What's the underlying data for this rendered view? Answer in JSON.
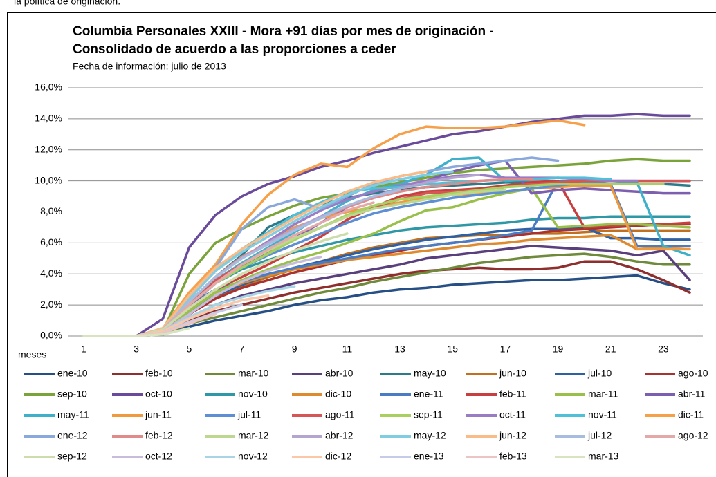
{
  "page_text": "la política de originación.",
  "chart_data": {
    "type": "line",
    "title": [
      "Columbia Personales XXIII - Mora +91 días por mes de originación -",
      "Consolidado de acuerdo a las proporciones a ceder"
    ],
    "subtitle": "Fecha de información: julio de 2013",
    "x_label": "meses",
    "categories": [
      1,
      null,
      3,
      null,
      5,
      null,
      7,
      null,
      9,
      null,
      11,
      null,
      13,
      null,
      15,
      null,
      17,
      null,
      19,
      null,
      21,
      null,
      23,
      null
    ],
    "ylim": [
      0,
      16
    ],
    "yticks": [
      {
        "value": 0,
        "label": "0,0%"
      },
      {
        "value": 2,
        "label": "2,0%"
      },
      {
        "value": 4,
        "label": "4,0%"
      },
      {
        "value": 6,
        "label": "6,0%"
      },
      {
        "value": 8,
        "label": "8,0%"
      },
      {
        "value": 10,
        "label": "10,0%"
      },
      {
        "value": 12,
        "label": "12,0%"
      },
      {
        "value": 14,
        "label": "14,0%"
      },
      {
        "value": 16,
        "label": "16,0%"
      }
    ],
    "grid": true,
    "legend": "bottom",
    "series": [
      {
        "name": "ene-10",
        "color": "#264f86",
        "values": [
          0,
          0,
          0,
          0.1,
          0.6,
          1.0,
          1.3,
          1.6,
          2.0,
          2.3,
          2.5,
          2.8,
          3.0,
          3.1,
          3.3,
          3.4,
          3.5,
          3.6,
          3.6,
          3.7,
          3.8,
          3.9,
          3.4,
          3.0
        ]
      },
      {
        "name": "feb-10",
        "color": "#8e2f2d",
        "values": [
          0,
          0,
          0,
          0.2,
          1.0,
          1.6,
          2.0,
          2.4,
          2.8,
          3.1,
          3.4,
          3.7,
          4.0,
          4.2,
          4.3,
          4.4,
          4.3,
          4.3,
          4.4,
          4.8,
          4.8,
          4.3,
          3.6,
          2.8
        ]
      },
      {
        "name": "mar-10",
        "color": "#6e8a3a",
        "values": [
          0,
          0,
          0,
          0.1,
          0.8,
          1.2,
          1.6,
          2.0,
          2.4,
          2.8,
          3.1,
          3.5,
          3.8,
          4.1,
          4.4,
          4.7,
          4.9,
          5.1,
          5.2,
          5.3,
          5.1,
          4.8,
          4.6,
          4.6
        ]
      },
      {
        "name": "abr-10",
        "color": "#5a3f7d",
        "values": [
          0,
          0,
          0,
          0.2,
          1.2,
          2.0,
          2.6,
          3.0,
          3.4,
          3.7,
          4.0,
          4.3,
          4.6,
          5.0,
          5.2,
          5.4,
          5.6,
          5.8,
          5.7,
          5.6,
          5.5,
          5.2,
          5.5,
          3.6
        ]
      },
      {
        "name": "may-10",
        "color": "#2c7b8a",
        "values": [
          0,
          0,
          0,
          0.3,
          1.8,
          3.8,
          5.2,
          7.0,
          7.8,
          8.5,
          8.9,
          9.2,
          9.4,
          9.6,
          9.7,
          9.8,
          9.9,
          9.9,
          9.9,
          9.9,
          9.8,
          9.8,
          9.8,
          9.7
        ]
      },
      {
        "name": "jun-10",
        "color": "#c0701f",
        "values": [
          0,
          0,
          0,
          0.2,
          1.4,
          2.5,
          3.2,
          3.8,
          4.3,
          4.8,
          5.3,
          5.7,
          6.0,
          6.3,
          6.4,
          6.5,
          6.5,
          6.6,
          6.6,
          6.7,
          6.8,
          6.8,
          6.8,
          6.8
        ]
      },
      {
        "name": "jul-10",
        "color": "#2f60a2",
        "values": [
          0,
          0,
          0,
          0.2,
          1.6,
          2.6,
          3.3,
          3.9,
          4.4,
          4.8,
          5.2,
          5.6,
          5.9,
          6.2,
          6.4,
          6.6,
          6.8,
          6.9,
          6.9,
          7.0,
          6.3,
          6.3,
          6.2,
          6.2
        ]
      },
      {
        "name": "ago-10",
        "color": "#a83230",
        "values": [
          0,
          0,
          0,
          0.2,
          1.4,
          2.4,
          3.1,
          3.6,
          4.1,
          4.5,
          4.9,
          5.2,
          5.5,
          5.8,
          6.0,
          6.2,
          6.4,
          6.6,
          6.8,
          6.9,
          7.0,
          7.1,
          7.2,
          7.2
        ]
      },
      {
        "name": "sep-10",
        "color": "#7aa33a",
        "values": [
          0,
          0,
          0,
          0.3,
          4.0,
          6.0,
          6.9,
          7.7,
          8.4,
          8.9,
          9.2,
          9.6,
          9.9,
          10.2,
          10.5,
          10.7,
          10.8,
          10.9,
          11.0,
          11.1,
          11.3,
          11.4,
          11.3,
          11.3
        ]
      },
      {
        "name": "oct-10",
        "color": "#6a4a9a",
        "values": [
          0,
          0,
          0,
          1.1,
          5.7,
          7.8,
          9.0,
          9.8,
          10.3,
          10.9,
          11.3,
          11.8,
          12.2,
          12.6,
          13.0,
          13.2,
          13.5,
          13.8,
          14.0,
          14.2,
          14.2,
          14.3,
          14.2,
          14.2
        ]
      },
      {
        "name": "nov-10",
        "color": "#2f98a6",
        "values": [
          0,
          0,
          0,
          0.3,
          2.0,
          3.4,
          4.3,
          4.9,
          5.4,
          5.8,
          6.2,
          6.5,
          6.8,
          7.0,
          7.1,
          7.2,
          7.3,
          7.5,
          7.6,
          7.6,
          7.7,
          7.7,
          7.7,
          7.7
        ]
      },
      {
        "name": "dic-10",
        "color": "#de8a2e",
        "values": [
          0,
          0,
          0,
          0.3,
          1.8,
          2.8,
          3.4,
          3.9,
          4.3,
          4.6,
          4.9,
          5.1,
          5.3,
          5.5,
          5.7,
          5.9,
          6.0,
          6.2,
          6.3,
          6.4,
          6.5,
          5.6,
          5.7,
          5.8
        ]
      },
      {
        "name": "ene-11",
        "color": "#4a7cc4",
        "values": [
          0,
          0,
          0,
          0.3,
          2.0,
          3.0,
          3.5,
          4.0,
          4.4,
          4.7,
          5.0,
          5.3,
          5.6,
          5.8,
          6.0,
          6.2,
          6.5,
          6.8,
          10.0,
          9.9,
          9.8,
          5.8,
          5.8,
          5.8
        ]
      },
      {
        "name": "feb-11",
        "color": "#c83f3f",
        "values": [
          0,
          0,
          0,
          0.3,
          1.8,
          3.0,
          3.8,
          4.6,
          5.5,
          6.4,
          7.5,
          8.3,
          9.0,
          9.3,
          9.4,
          9.5,
          9.7,
          9.9,
          10.0,
          7.0,
          7.1,
          7.2,
          7.2,
          7.3
        ]
      },
      {
        "name": "mar-11",
        "color": "#98c04a",
        "values": [
          0,
          0,
          0,
          0.3,
          1.6,
          2.8,
          3.6,
          4.3,
          4.9,
          5.4,
          6.0,
          6.6,
          7.4,
          8.1,
          8.3,
          8.8,
          9.2,
          9.5,
          7.0,
          7.1,
          7.2,
          7.2,
          7.1,
          7.0
        ]
      },
      {
        "name": "abr-11",
        "color": "#7d5faf",
        "values": [
          0,
          0,
          0,
          0.3,
          1.9,
          3.4,
          4.5,
          5.4,
          6.3,
          7.3,
          8.3,
          9.0,
          9.5,
          10.0,
          10.6,
          11.0,
          11.3,
          9.2,
          9.4,
          9.5,
          9.4,
          9.3,
          9.2,
          9.2
        ]
      },
      {
        "name": "may-11",
        "color": "#3fb0c9",
        "values": [
          0,
          0,
          0,
          0.4,
          2.0,
          3.6,
          4.7,
          5.7,
          6.7,
          7.7,
          8.7,
          9.4,
          9.8,
          10.4,
          11.4,
          11.5,
          10.0,
          10.1,
          10.2,
          10.1,
          10.0,
          9.9,
          5.8,
          5.2
        ]
      },
      {
        "name": "jun-11",
        "color": "#f09a40",
        "values": [
          0,
          0,
          0,
          0.3,
          2.0,
          3.8,
          5.0,
          6.0,
          7.0,
          7.6,
          8.0,
          8.3,
          8.6,
          8.9,
          9.1,
          9.2,
          9.3,
          9.5,
          9.6,
          9.7,
          9.7,
          5.6,
          5.6,
          5.6
        ]
      },
      {
        "name": "jul-11",
        "color": "#5e8ed4",
        "values": [
          0,
          0,
          0,
          0.4,
          2.1,
          3.5,
          4.4,
          5.2,
          5.9,
          6.6,
          7.3,
          7.9,
          8.3,
          8.6,
          8.9,
          9.1,
          9.3,
          9.5,
          9.7,
          9.9,
          10.0,
          10.0,
          10.0,
          10.0
        ]
      },
      {
        "name": "ago-11",
        "color": "#d65656",
        "values": [
          0,
          0,
          0,
          0.4,
          2.2,
          3.6,
          4.6,
          5.5,
          6.3,
          7.0,
          7.7,
          8.3,
          8.8,
          9.2,
          9.3,
          9.4,
          9.6,
          9.8,
          9.9,
          10.0,
          10.0,
          10.0,
          10.0,
          10.0
        ]
      },
      {
        "name": "sep-11",
        "color": "#a8d060",
        "values": [
          0,
          0,
          0,
          0.3,
          2.0,
          3.4,
          4.4,
          5.3,
          6.2,
          7.0,
          7.8,
          8.4,
          8.8,
          9.0,
          9.2,
          9.4,
          9.6,
          9.7,
          9.8,
          9.8,
          9.8,
          9.8,
          9.8,
          null
        ]
      },
      {
        "name": "oct-11",
        "color": "#9a7cc4",
        "values": [
          0,
          0,
          0,
          0.4,
          2.2,
          3.8,
          5.0,
          6.1,
          7.2,
          8.1,
          8.8,
          9.3,
          9.7,
          10.0,
          10.3,
          10.4,
          10.2,
          10.2,
          10.2,
          10.1,
          10.0,
          10.0,
          null,
          null
        ]
      },
      {
        "name": "nov-11",
        "color": "#50c0d8",
        "values": [
          0,
          0,
          0,
          0.4,
          2.4,
          4.2,
          5.6,
          6.7,
          7.8,
          8.6,
          9.3,
          9.5,
          9.6,
          9.8,
          9.9,
          10.0,
          10.1,
          10.1,
          10.2,
          10.2,
          10.1,
          null,
          null,
          null
        ]
      },
      {
        "name": "dic-11",
        "color": "#f7a04a",
        "values": [
          0,
          0,
          0,
          0.5,
          2.8,
          4.6,
          7.2,
          9.1,
          10.4,
          11.1,
          10.9,
          12.1,
          13.0,
          13.5,
          13.4,
          13.4,
          13.5,
          13.7,
          13.9,
          13.6,
          null,
          null,
          null,
          null
        ]
      },
      {
        "name": "ene-12",
        "color": "#8aa8dc",
        "values": [
          0,
          0,
          0,
          0.4,
          2.4,
          4.4,
          6.9,
          8.3,
          8.8,
          8.2,
          9.0,
          9.8,
          10.3,
          10.6,
          10.9,
          11.1,
          11.3,
          11.5,
          11.3,
          null,
          null,
          null,
          null,
          null
        ]
      },
      {
        "name": "feb-12",
        "color": "#e08a8a",
        "values": [
          0,
          0,
          0,
          0.4,
          2.2,
          3.8,
          5.1,
          6.0,
          6.9,
          7.6,
          8.3,
          8.9,
          9.3,
          9.6,
          9.8,
          10.0,
          10.1,
          10.1,
          null,
          null,
          null,
          null,
          null,
          null
        ]
      },
      {
        "name": "mar-12",
        "color": "#bcd890",
        "values": [
          0,
          0,
          0,
          0.4,
          2.0,
          3.4,
          4.6,
          5.5,
          6.3,
          7.0,
          7.7,
          8.2,
          8.5,
          8.8,
          9.1,
          9.3,
          9.4,
          null,
          null,
          null,
          null,
          null,
          null,
          null
        ]
      },
      {
        "name": "abr-12",
        "color": "#b4a4d0",
        "values": [
          0,
          0,
          0,
          0.4,
          2.2,
          3.8,
          5.0,
          6.0,
          6.9,
          7.7,
          8.4,
          9.0,
          9.5,
          9.9,
          10.2,
          10.4,
          null,
          null,
          null,
          null,
          null,
          null,
          null,
          null
        ]
      },
      {
        "name": "may-12",
        "color": "#80cce0",
        "values": [
          0,
          0,
          0,
          0.4,
          2.4,
          4.2,
          5.4,
          6.4,
          7.4,
          8.3,
          9.1,
          9.7,
          10.1,
          10.4,
          10.6,
          null,
          null,
          null,
          null,
          null,
          null,
          null,
          null,
          null
        ]
      },
      {
        "name": "jun-12",
        "color": "#f9bc88",
        "values": [
          0,
          0,
          0,
          0.5,
          2.6,
          4.4,
          5.6,
          6.6,
          7.6,
          8.5,
          9.3,
          9.9,
          10.3,
          10.6,
          null,
          null,
          null,
          null,
          null,
          null,
          null,
          null,
          null,
          null
        ]
      },
      {
        "name": "jul-12",
        "color": "#a8bce0",
        "values": [
          0,
          0,
          0,
          0.4,
          2.2,
          3.8,
          5.0,
          5.9,
          6.8,
          7.6,
          8.4,
          9.0,
          9.4,
          null,
          null,
          null,
          null,
          null,
          null,
          null,
          null,
          null,
          null,
          null
        ]
      },
      {
        "name": "ago-12",
        "color": "#e4a8a8",
        "values": [
          0,
          0,
          0,
          0.4,
          2.0,
          3.4,
          4.6,
          5.6,
          6.5,
          7.3,
          8.1,
          8.6,
          null,
          null,
          null,
          null,
          null,
          null,
          null,
          null,
          null,
          null,
          null,
          null
        ]
      },
      {
        "name": "sep-12",
        "color": "#ccdcaa",
        "values": [
          0,
          0,
          0,
          0.4,
          1.8,
          3.0,
          4.0,
          4.8,
          5.5,
          6.1,
          6.6,
          null,
          null,
          null,
          null,
          null,
          null,
          null,
          null,
          null,
          null,
          null,
          null,
          null
        ]
      },
      {
        "name": "oct-12",
        "color": "#c8bcdc",
        "values": [
          0,
          0,
          0,
          0.3,
          1.4,
          2.6,
          3.5,
          4.2,
          4.7,
          5.1,
          null,
          null,
          null,
          null,
          null,
          null,
          null,
          null,
          null,
          null,
          null,
          null,
          null,
          null
        ]
      },
      {
        "name": "nov-12",
        "color": "#a8d4e4",
        "values": [
          0,
          0,
          0,
          0.3,
          1.2,
          2.0,
          2.5,
          2.9,
          3.2,
          null,
          null,
          null,
          null,
          null,
          null,
          null,
          null,
          null,
          null,
          null,
          null,
          null,
          null,
          null
        ]
      },
      {
        "name": "dic-12",
        "color": "#fac8a8",
        "values": [
          0,
          0,
          0,
          0.3,
          1.1,
          1.8,
          2.3,
          2.6,
          null,
          null,
          null,
          null,
          null,
          null,
          null,
          null,
          null,
          null,
          null,
          null,
          null,
          null,
          null,
          null
        ]
      },
      {
        "name": "ene-13",
        "color": "#c4cce8",
        "values": [
          0,
          0,
          0,
          0.2,
          0.9,
          1.5,
          2.0,
          null,
          null,
          null,
          null,
          null,
          null,
          null,
          null,
          null,
          null,
          null,
          null,
          null,
          null,
          null,
          null,
          null
        ]
      },
      {
        "name": "feb-13",
        "color": "#ecc4c4",
        "values": [
          0,
          0,
          0,
          0.2,
          0.8,
          1.4,
          null,
          null,
          null,
          null,
          null,
          null,
          null,
          null,
          null,
          null,
          null,
          null,
          null,
          null,
          null,
          null,
          null,
          null
        ]
      },
      {
        "name": "mar-13",
        "color": "#d8e4c0",
        "values": [
          0,
          0,
          0,
          0.1,
          0.5,
          null,
          null,
          null,
          null,
          null,
          null,
          null,
          null,
          null,
          null,
          null,
          null,
          null,
          null,
          null,
          null,
          null,
          null,
          null
        ]
      }
    ]
  }
}
